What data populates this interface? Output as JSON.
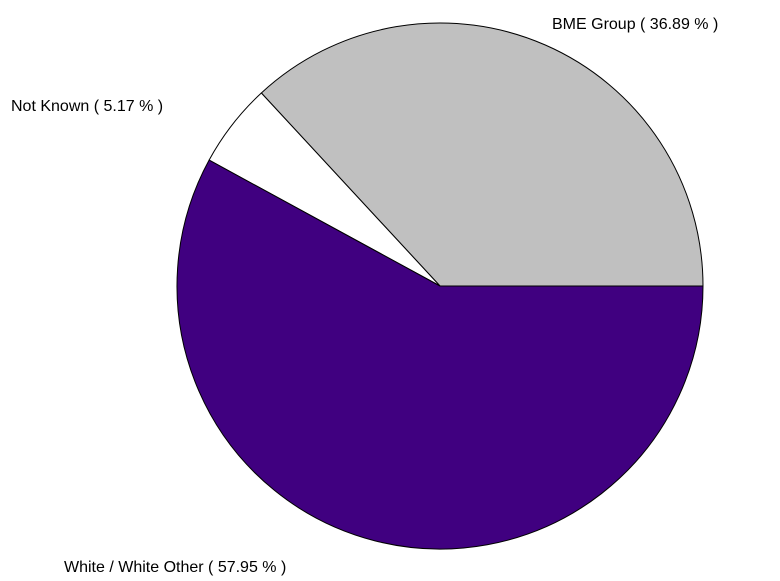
{
  "chart_data": {
    "type": "pie",
    "title": "",
    "slices": [
      {
        "label": "BME Group ( 36.89 % )",
        "value": 36.89,
        "color": "#c0c0c0"
      },
      {
        "label": "Not Known ( 5.17 % )",
        "value": 5.17,
        "color": "#ffffff"
      },
      {
        "label": "White / White Other ( 57.95 % )",
        "value": 57.95,
        "color": "#400080"
      }
    ],
    "start_angle_deg": 0,
    "direction": "counterclockwise",
    "outline_color": "#000000",
    "legend": "none"
  }
}
